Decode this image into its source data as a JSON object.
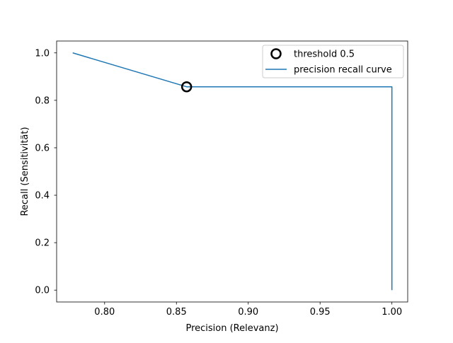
{
  "chart_data": {
    "type": "line",
    "xlabel": "Precision (Relevanz)",
    "ylabel": "Recall (Sensitivität)",
    "xlim": [
      0.7666,
      1.011
    ],
    "ylim": [
      -0.05,
      1.05
    ],
    "xticks": [
      0.8,
      0.85,
      0.9,
      0.95,
      1.0
    ],
    "xtick_labels": [
      "0.80",
      "0.85",
      "0.90",
      "0.95",
      "1.00"
    ],
    "yticks": [
      0.0,
      0.2,
      0.4,
      0.6,
      0.8,
      1.0
    ],
    "ytick_labels": [
      "0.0",
      "0.2",
      "0.4",
      "0.6",
      "0.8",
      "1.0"
    ],
    "grid": false,
    "legend_position": "top-right",
    "series": [
      {
        "name": "precision recall curve",
        "color": "#1f77b4",
        "x": [
          0.7778,
          0.8571,
          1.0,
          1.0
        ],
        "y": [
          1.0,
          0.8571,
          0.8571,
          0.0
        ]
      }
    ],
    "markers": [
      {
        "name": "threshold 0.5",
        "marker": "open-circle",
        "color": "#000000",
        "x": 0.8571,
        "y": 0.8571
      }
    ]
  }
}
